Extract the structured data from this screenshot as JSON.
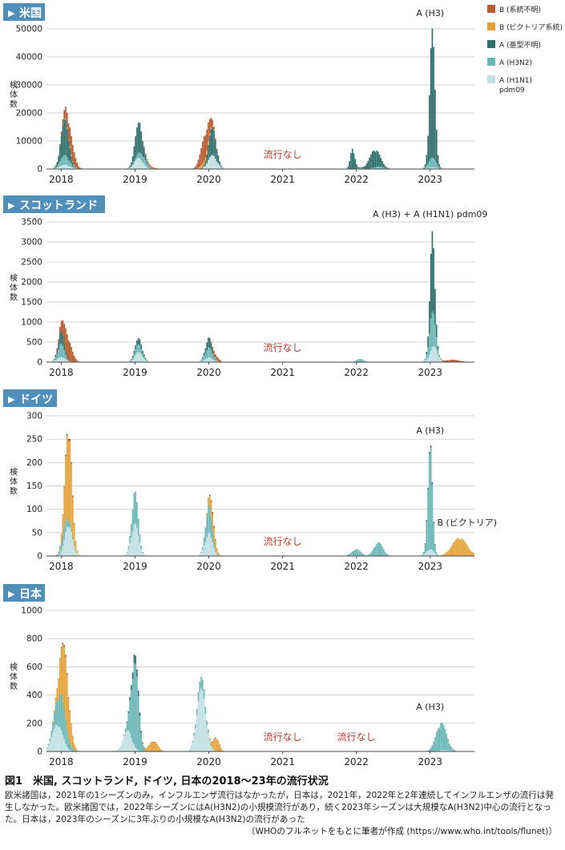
{
  "colors": {
    "b_unknown": "#b85a2e",
    "b_victoria": "#e4a33a",
    "a_unsubtyped": "#2f6f6d",
    "a_h3n2": "#6bb6b6",
    "a_h1n1": "#c2e0e4",
    "panel_label_bg": "#4f8fba",
    "no_epidemic_text": "#c0392b",
    "grid": "#bfbfbf",
    "axis": "#444444"
  },
  "legend": {
    "items": [
      {
        "key": "b_unknown",
        "label": "B (系統不明)"
      },
      {
        "key": "b_victoria",
        "label": "B (ビクトリア系統)"
      },
      {
        "key": "a_unsubtyped",
        "label": "A (亜型不明)"
      },
      {
        "key": "a_h3n2",
        "label": "A (H3N2)"
      },
      {
        "key": "a_h1n1",
        "label": "A (H1N1)",
        "label2": "pdm09"
      }
    ]
  },
  "chart_data": [
    {
      "type": "bar",
      "stacked": true,
      "panel_label": "米国",
      "ylabel": "検体数",
      "ylim": [
        0,
        50000
      ],
      "yticks": [
        0,
        10000,
        20000,
        30000,
        40000,
        50000
      ],
      "ytick_labels": [
        "0",
        "10000",
        "20000",
        "30000",
        "40000",
        "50000"
      ],
      "x_tick_labels": [
        "2018",
        "2019",
        "2020",
        "2021",
        "2022",
        "2023"
      ],
      "grid": true,
      "no_epidemic": [
        {
          "label": "流行なし",
          "x": 2021
        }
      ],
      "annotations": [
        {
          "label": "A (H3)",
          "x": 2023
        }
      ],
      "series": [
        {
          "key": "a_h1n1",
          "peaks": [
            [
              2018.05,
              1500,
              0.07
            ],
            [
              2019.05,
              4000,
              0.06
            ],
            [
              2020.05,
              5000,
              0.06
            ],
            [
              2023.03,
              600,
              0.06
            ]
          ]
        },
        {
          "key": "a_h3n2",
          "peaks": [
            [
              2018.05,
              3500,
              0.06
            ],
            [
              2019.1,
              2500,
              0.06
            ],
            [
              2022.05,
              500,
              0.04
            ],
            [
              2022.3,
              900,
              0.07
            ],
            [
              2023.03,
              3500,
              0.05
            ]
          ]
        },
        {
          "key": "a_unsubtyped",
          "peaks": [
            [
              2018.05,
              13000,
              0.05
            ],
            [
              2019.05,
              11000,
              0.05
            ],
            [
              2020.05,
              10000,
              0.05
            ],
            [
              2021.95,
              7500,
              0.03
            ],
            [
              2022.25,
              6500,
              0.07
            ],
            [
              2023.03,
              46000,
              0.035
            ]
          ]
        },
        {
          "key": "b_victoria",
          "peaks": [
            [
              2018.12,
              500,
              0.07
            ],
            [
              2019.2,
              250,
              0.07
            ],
            [
              2019.95,
              1500,
              0.06
            ]
          ]
        },
        {
          "key": "b_unknown",
          "peaks": [
            [
              2018.12,
              7000,
              0.06
            ],
            [
              2019.2,
              500,
              0.06
            ],
            [
              2019.95,
              9000,
              0.06
            ],
            [
              2023.2,
              150,
              0.1
            ]
          ]
        }
      ]
    },
    {
      "type": "bar",
      "stacked": true,
      "panel_label": "スコットランド",
      "ylabel": "検体数",
      "ylim": [
        0,
        3500
      ],
      "yticks": [
        0,
        500,
        1000,
        1500,
        2000,
        2500,
        3000,
        3500
      ],
      "ytick_labels": [
        "0",
        "500",
        "1000",
        "1500",
        "2000",
        "2500",
        "3000",
        "3500"
      ],
      "x_tick_labels": [
        "2018",
        "2019",
        "2020",
        "2021",
        "2022",
        "2023"
      ],
      "grid": true,
      "no_epidemic": [
        {
          "label": "流行なし",
          "x": 2021
        }
      ],
      "annotations": [
        {
          "label": "A (H3) + A (H1N1) pdm09",
          "x": 2023
        }
      ],
      "series": [
        {
          "key": "a_h1n1",
          "peaks": [
            [
              2018.0,
              120,
              0.06
            ],
            [
              2019.05,
              250,
              0.05
            ],
            [
              2020.0,
              120,
              0.05
            ],
            [
              2023.05,
              400,
              0.05
            ]
          ]
        },
        {
          "key": "a_h3n2",
          "peaks": [
            [
              2018.0,
              350,
              0.04
            ],
            [
              2019.05,
              200,
              0.05
            ],
            [
              2020.0,
              250,
              0.05
            ],
            [
              2022.05,
              80,
              0.05
            ],
            [
              2023.03,
              900,
              0.04
            ]
          ]
        },
        {
          "key": "a_unsubtyped",
          "peaks": [
            [
              2018.0,
              300,
              0.04
            ],
            [
              2019.05,
              150,
              0.05
            ],
            [
              2020.0,
              250,
              0.04
            ],
            [
              2023.03,
              2000,
              0.03
            ]
          ]
        },
        {
          "key": "b_victoria",
          "peaks": [
            [
              2020.1,
              30,
              0.04
            ]
          ]
        },
        {
          "key": "b_unknown",
          "peaks": [
            [
              2018.08,
              600,
              0.06
            ],
            [
              2020.1,
              100,
              0.04
            ],
            [
              2023.3,
              60,
              0.1
            ]
          ]
        }
      ]
    },
    {
      "type": "bar",
      "stacked": true,
      "panel_label": "ドイツ",
      "ylabel": "検体数",
      "ylim": [
        0,
        300
      ],
      "yticks": [
        0,
        50,
        100,
        150,
        200,
        250,
        300
      ],
      "ytick_labels": [
        "0",
        "50",
        "100",
        "150",
        "200",
        "250",
        "300"
      ],
      "x_tick_labels": [
        "2018",
        "2019",
        "2020",
        "2021",
        "2022",
        "2023"
      ],
      "grid": true,
      "no_epidemic": [
        {
          "label": "流行なし",
          "x": 2021
        }
      ],
      "annotations": [
        {
          "label": "A (H3)",
          "x": 2023
        },
        {
          "label": "B (ビクトリア)",
          "x": 2023.5
        }
      ],
      "series": [
        {
          "key": "a_h1n1",
          "peaks": [
            [
              2018.1,
              70,
              0.05
            ],
            [
              2019.0,
              70,
              0.05
            ],
            [
              2020.0,
              50,
              0.05
            ],
            [
              2023.0,
              15,
              0.05
            ]
          ]
        },
        {
          "key": "a_h3n2",
          "peaks": [
            [
              2018.05,
              25,
              0.05
            ],
            [
              2019.0,
              70,
              0.04
            ],
            [
              2020.0,
              60,
              0.04
            ],
            [
              2022.0,
              15,
              0.06
            ],
            [
              2022.3,
              30,
              0.06
            ],
            [
              2023.0,
              230,
              0.03
            ]
          ]
        },
        {
          "key": "a_unsubtyped",
          "peaks": [
            [
              2023.0,
              5,
              0.05
            ]
          ]
        },
        {
          "key": "b_victoria",
          "peaks": [
            [
              2018.1,
              200,
              0.045
            ],
            [
              2020.05,
              35,
              0.04
            ],
            [
              2023.4,
              40,
              0.1
            ]
          ]
        },
        {
          "key": "b_unknown",
          "peaks": [
            [
              2018.1,
              5,
              0.05
            ],
            [
              2020.05,
              5,
              0.04
            ]
          ]
        }
      ]
    },
    {
      "type": "bar",
      "stacked": true,
      "panel_label": "日本",
      "ylabel": "検体数",
      "ylim": [
        0,
        1000
      ],
      "yticks": [
        0,
        200,
        400,
        600,
        800,
        1000
      ],
      "ytick_labels": [
        "0",
        "200",
        "400",
        "600",
        "800",
        "1000"
      ],
      "x_tick_labels": [
        "2018",
        "2019",
        "2020",
        "2021",
        "2022",
        "2023"
      ],
      "grid": true,
      "no_epidemic": [
        {
          "label": "流行なし",
          "x": 2021
        },
        {
          "label": "流行なし",
          "x": 2022
        }
      ],
      "annotations": [
        {
          "label": "A (H3)",
          "x": 2023
        }
      ],
      "series": [
        {
          "key": "a_h1n1",
          "peaks": [
            [
              2017.95,
              200,
              0.07
            ],
            [
              2018.9,
              150,
              0.06
            ],
            [
              2019.9,
              450,
              0.06
            ],
            [
              2023.2,
              10,
              0.08
            ]
          ]
        },
        {
          "key": "a_h3n2",
          "peaks": [
            [
              2018.0,
              250,
              0.07
            ],
            [
              2019.0,
              600,
              0.05
            ],
            [
              2019.9,
              80,
              0.06
            ],
            [
              2023.15,
              200,
              0.07
            ]
          ]
        },
        {
          "key": "a_unsubtyped",
          "peaks": [
            [
              2019.0,
              60,
              0.05
            ]
          ]
        },
        {
          "key": "b_victoria",
          "peaks": [
            [
              2018.05,
              450,
              0.06
            ],
            [
              2019.25,
              70,
              0.06
            ],
            [
              2020.1,
              100,
              0.04
            ]
          ]
        },
        {
          "key": "b_unknown",
          "peaks": [
            [
              2018.05,
              15,
              0.05
            ],
            [
              2019.25,
              5,
              0.05
            ],
            [
              2020.1,
              5,
              0.04
            ]
          ]
        }
      ]
    }
  ],
  "caption": {
    "title": "図1　米国, スコットランド, ドイツ, 日本の2018～23年の流行状況",
    "body": "欧米諸国は，2021年の1シーズンのみ，インフルエンザ流行はなかったが，日本は，2021年，2022年と2年連続してインフルエンザの流行は発生しなかった。欧米諸国では，2022年シーズンにはA(H3N2)の小規模流行があり，続く2023年シーズンは大規模なA(H3N2)中心の流行となった。日本は，2023年のシーズンに3年ぶりの小規模なA(H3N2)の流行があった",
    "source": "〔WHOのフルネットをもとに筆者が作成 (https://www.who.int/tools/flunet)〕"
  }
}
